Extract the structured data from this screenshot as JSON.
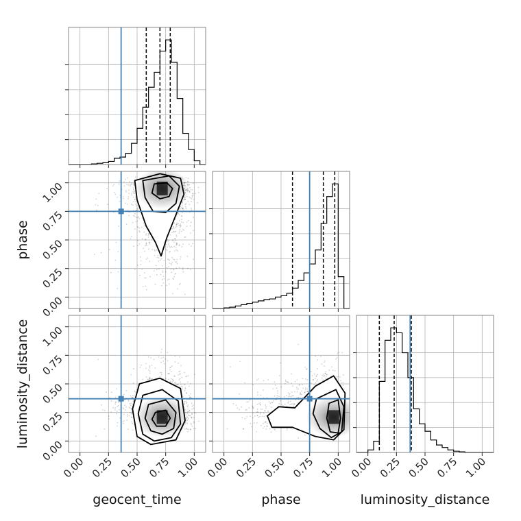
{
  "chart_data": {
    "type": "corner",
    "parameters": [
      "geocent_time",
      "phase",
      "luminosity_distance"
    ],
    "axis_labels": {
      "geocent_time": "geocent_time",
      "phase": "phase",
      "luminosity_distance": "luminosity_distance"
    },
    "range": [
      -0.1,
      1.1
    ],
    "ticks": [
      0.0,
      0.25,
      0.5,
      0.75,
      1.0
    ],
    "tick_labels": [
      "0.00",
      "0.25",
      "0.50",
      "0.75",
      "1.00"
    ],
    "grid": true,
    "truths": {
      "geocent_time": 0.36,
      "phase": 0.75,
      "luminosity_distance": 0.37
    },
    "truth_color": "#4682b4",
    "hist_color": "#000000",
    "marginals": {
      "geocent_time": {
        "bin_edges": [
          -0.1,
          -0.05,
          0.0,
          0.05,
          0.1,
          0.15,
          0.2,
          0.25,
          0.3,
          0.35,
          0.4,
          0.45,
          0.5,
          0.55,
          0.6,
          0.65,
          0.7,
          0.75,
          0.8,
          0.85,
          0.9,
          0.95,
          1.0,
          1.05,
          1.1
        ],
        "counts": [
          0,
          0,
          0,
          0,
          0.005,
          0.01,
          0.015,
          0.025,
          0.05,
          0.06,
          0.09,
          0.17,
          0.29,
          0.46,
          0.62,
          0.74,
          0.91,
          1.0,
          0.82,
          0.53,
          0.25,
          0.12,
          0.03,
          0.0
        ],
        "quantiles": [
          0.58,
          0.7,
          0.79
        ]
      },
      "phase": {
        "bin_edges": [
          -0.1,
          -0.05,
          0.0,
          0.05,
          0.1,
          0.15,
          0.2,
          0.25,
          0.3,
          0.35,
          0.4,
          0.45,
          0.5,
          0.55,
          0.6,
          0.65,
          0.7,
          0.75,
          0.8,
          0.85,
          0.9,
          0.95,
          1.0,
          1.05,
          1.1
        ],
        "counts": [
          0,
          0,
          0.005,
          0.01,
          0.02,
          0.03,
          0.04,
          0.05,
          0.06,
          0.07,
          0.075,
          0.09,
          0.1,
          0.12,
          0.16,
          0.22,
          0.28,
          0.35,
          0.46,
          0.67,
          0.88,
          0.98,
          0.25,
          0.0
        ],
        "quantiles": [
          0.6,
          0.87,
          0.97
        ]
      },
      "luminosity_distance": {
        "bin_edges": [
          -0.1,
          -0.05,
          0.0,
          0.05,
          0.1,
          0.15,
          0.2,
          0.25,
          0.3,
          0.35,
          0.4,
          0.45,
          0.5,
          0.55,
          0.6,
          0.65,
          0.7,
          0.75,
          0.8,
          0.85,
          0.9,
          0.95,
          1.0,
          1.05,
          1.1
        ],
        "counts": [
          0,
          0,
          0.02,
          0.09,
          0.57,
          0.9,
          1.0,
          0.96,
          0.8,
          0.6,
          0.35,
          0.23,
          0.17,
          0.1,
          0.06,
          0.04,
          0.02,
          0.01,
          0.005,
          0,
          0,
          0,
          0,
          0
        ],
        "quantiles": [
          0.1,
          0.23,
          0.38
        ]
      }
    },
    "joints": [
      {
        "x": "geocent_time",
        "y": "phase",
        "center": [
          0.72,
          0.95
        ],
        "contours": [
          [
            [
              0.65,
              0.99
            ],
            [
              0.76,
              1.0
            ],
            [
              0.81,
              0.95
            ],
            [
              0.78,
              0.88
            ],
            [
              0.7,
              0.86
            ],
            [
              0.63,
              0.91
            ]
          ],
          [
            [
              0.55,
              1.02
            ],
            [
              0.78,
              1.06
            ],
            [
              0.87,
              0.97
            ],
            [
              0.84,
              0.82
            ],
            [
              0.75,
              0.74
            ],
            [
              0.64,
              0.75
            ],
            [
              0.57,
              0.87
            ]
          ],
          [
            [
              0.48,
              1.02
            ],
            [
              0.7,
              1.08
            ],
            [
              0.88,
              1.04
            ],
            [
              0.91,
              0.9
            ],
            [
              0.84,
              0.72
            ],
            [
              0.76,
              0.52
            ],
            [
              0.71,
              0.36
            ],
            [
              0.66,
              0.48
            ],
            [
              0.58,
              0.62
            ],
            [
              0.5,
              0.85
            ]
          ]
        ]
      },
      {
        "x": "geocent_time",
        "y": "luminosity_distance",
        "center": [
          0.72,
          0.21
        ],
        "contours": [
          [
            [
              0.66,
              0.25
            ],
            [
              0.75,
              0.27
            ],
            [
              0.79,
              0.2
            ],
            [
              0.75,
              0.13
            ],
            [
              0.67,
              0.13
            ],
            [
              0.63,
              0.19
            ]
          ],
          [
            [
              0.6,
              0.32
            ],
            [
              0.75,
              0.36
            ],
            [
              0.84,
              0.25
            ],
            [
              0.82,
              0.11
            ],
            [
              0.72,
              0.06
            ],
            [
              0.62,
              0.09
            ],
            [
              0.57,
              0.2
            ]
          ],
          [
            [
              0.55,
              0.4
            ],
            [
              0.72,
              0.45
            ],
            [
              0.86,
              0.35
            ],
            [
              0.88,
              0.15
            ],
            [
              0.8,
              0.03
            ],
            [
              0.65,
              0.0
            ],
            [
              0.55,
              0.06
            ],
            [
              0.51,
              0.24
            ]
          ],
          [
            [
              0.52,
              0.5
            ],
            [
              0.7,
              0.55
            ],
            [
              0.88,
              0.46
            ],
            [
              0.92,
              0.18
            ],
            [
              0.84,
              0.01
            ],
            [
              0.62,
              -0.03
            ],
            [
              0.5,
              0.04
            ],
            [
              0.46,
              0.28
            ]
          ]
        ]
      },
      {
        "x": "phase",
        "y": "luminosity_distance",
        "center": [
          0.96,
          0.21
        ],
        "contours": [
          [
            [
              0.92,
              0.33
            ],
            [
              1.0,
              0.36
            ],
            [
              1.02,
              0.2
            ],
            [
              1.0,
              0.07
            ],
            [
              0.93,
              0.08
            ],
            [
              0.9,
              0.2
            ]
          ],
          [
            [
              0.81,
              0.37
            ],
            [
              0.98,
              0.45
            ],
            [
              1.05,
              0.3
            ],
            [
              1.03,
              0.08
            ],
            [
              0.94,
              0.03
            ],
            [
              0.84,
              0.11
            ],
            [
              0.78,
              0.24
            ]
          ],
          [
            [
              0.62,
              0.29
            ],
            [
              0.8,
              0.48
            ],
            [
              0.96,
              0.57
            ],
            [
              1.06,
              0.42
            ],
            [
              1.05,
              0.1
            ],
            [
              0.96,
              0.01
            ],
            [
              0.8,
              0.04
            ],
            [
              0.6,
              0.12
            ],
            [
              0.42,
              0.12
            ],
            [
              0.38,
              0.22
            ],
            [
              0.48,
              0.3
            ]
          ]
        ]
      }
    ]
  }
}
